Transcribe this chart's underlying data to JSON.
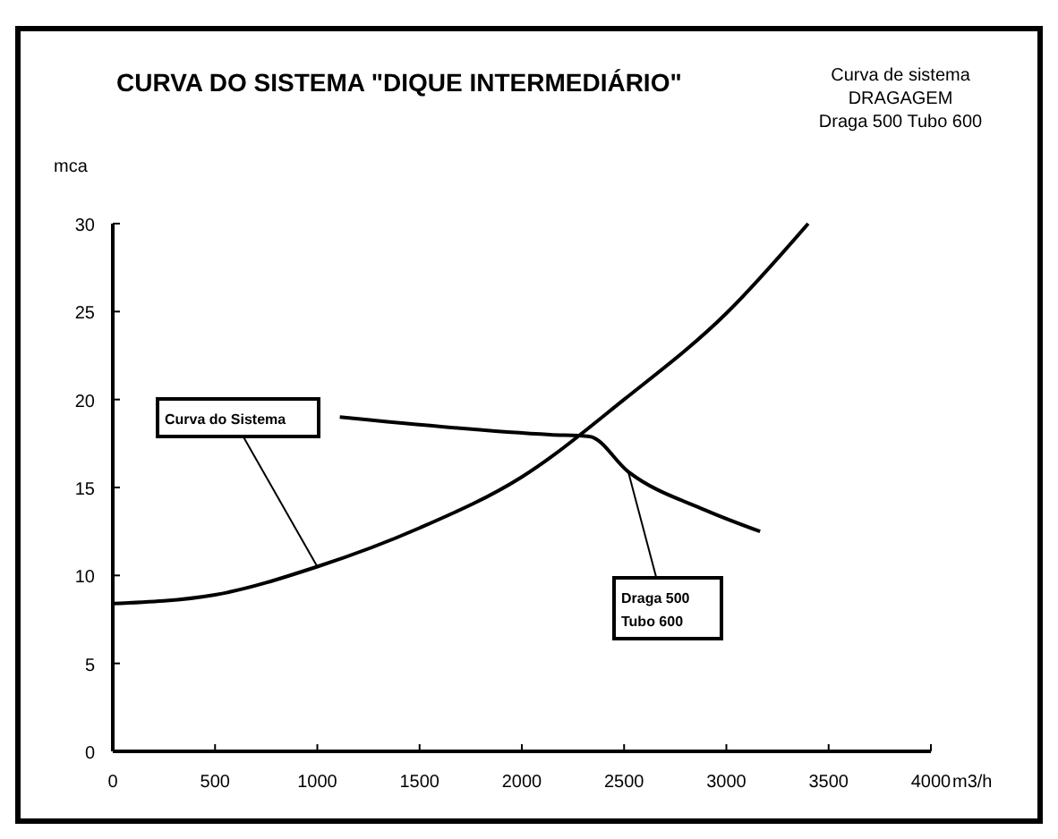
{
  "chart_data": {
    "type": "line",
    "title": "CURVA DO SISTEMA \"DIQUE INTERMEDIÁRIO\"",
    "annotations": [
      "Curva de sistema",
      "DRAGAGEM",
      "Draga 500 Tubo 600"
    ],
    "xlabel": "m3/h",
    "ylabel": "mca",
    "xlim": [
      0,
      4000
    ],
    "xticks": [
      0,
      500,
      1000,
      1500,
      2000,
      2500,
      3000,
      3500,
      4000
    ],
    "ylim": [
      0,
      30
    ],
    "yticks": [
      0,
      5,
      10,
      15,
      20,
      25,
      30
    ],
    "series": [
      {
        "name": "Curva do Sistema",
        "color": "#000000",
        "x": [
          0,
          500,
          1000,
          1500,
          2000,
          2500,
          3000,
          3400
        ],
        "values": [
          8.4,
          8.9,
          10.5,
          12.7,
          15.6,
          20.0,
          24.9,
          30
        ]
      },
      {
        "name": "Draga 500 Tubo 600",
        "color": "#000000",
        "x": [
          1110,
          2140,
          2330,
          2520,
          2900,
          3165
        ],
        "values": [
          19.0,
          18.0,
          17.9,
          15.9,
          13.7,
          12.5
        ]
      }
    ]
  }
}
